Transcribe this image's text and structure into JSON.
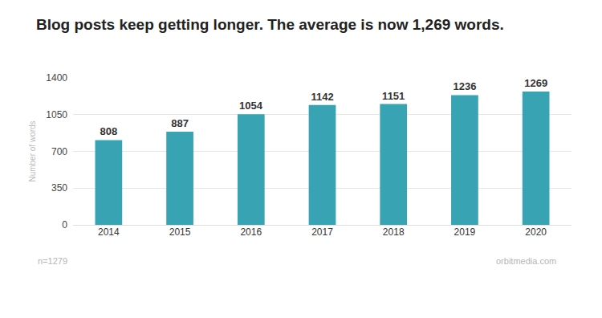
{
  "chart_data": {
    "type": "bar",
    "title": "Blog posts keep getting longer. The average is now 1,269 words.",
    "y_label": "Number of words",
    "categories": [
      "2014",
      "2015",
      "2016",
      "2017",
      "2018",
      "2019",
      "2020"
    ],
    "values": [
      808,
      887,
      1054,
      1142,
      1151,
      1236,
      1269
    ],
    "color": "#38a3b3",
    "ylim": [
      0,
      1400
    ],
    "yticks": [
      0,
      350,
      700,
      1050,
      1400
    ],
    "grid": true,
    "data_labels": true,
    "annotations": [
      "n=1279",
      "orbitmedia.com"
    ]
  }
}
